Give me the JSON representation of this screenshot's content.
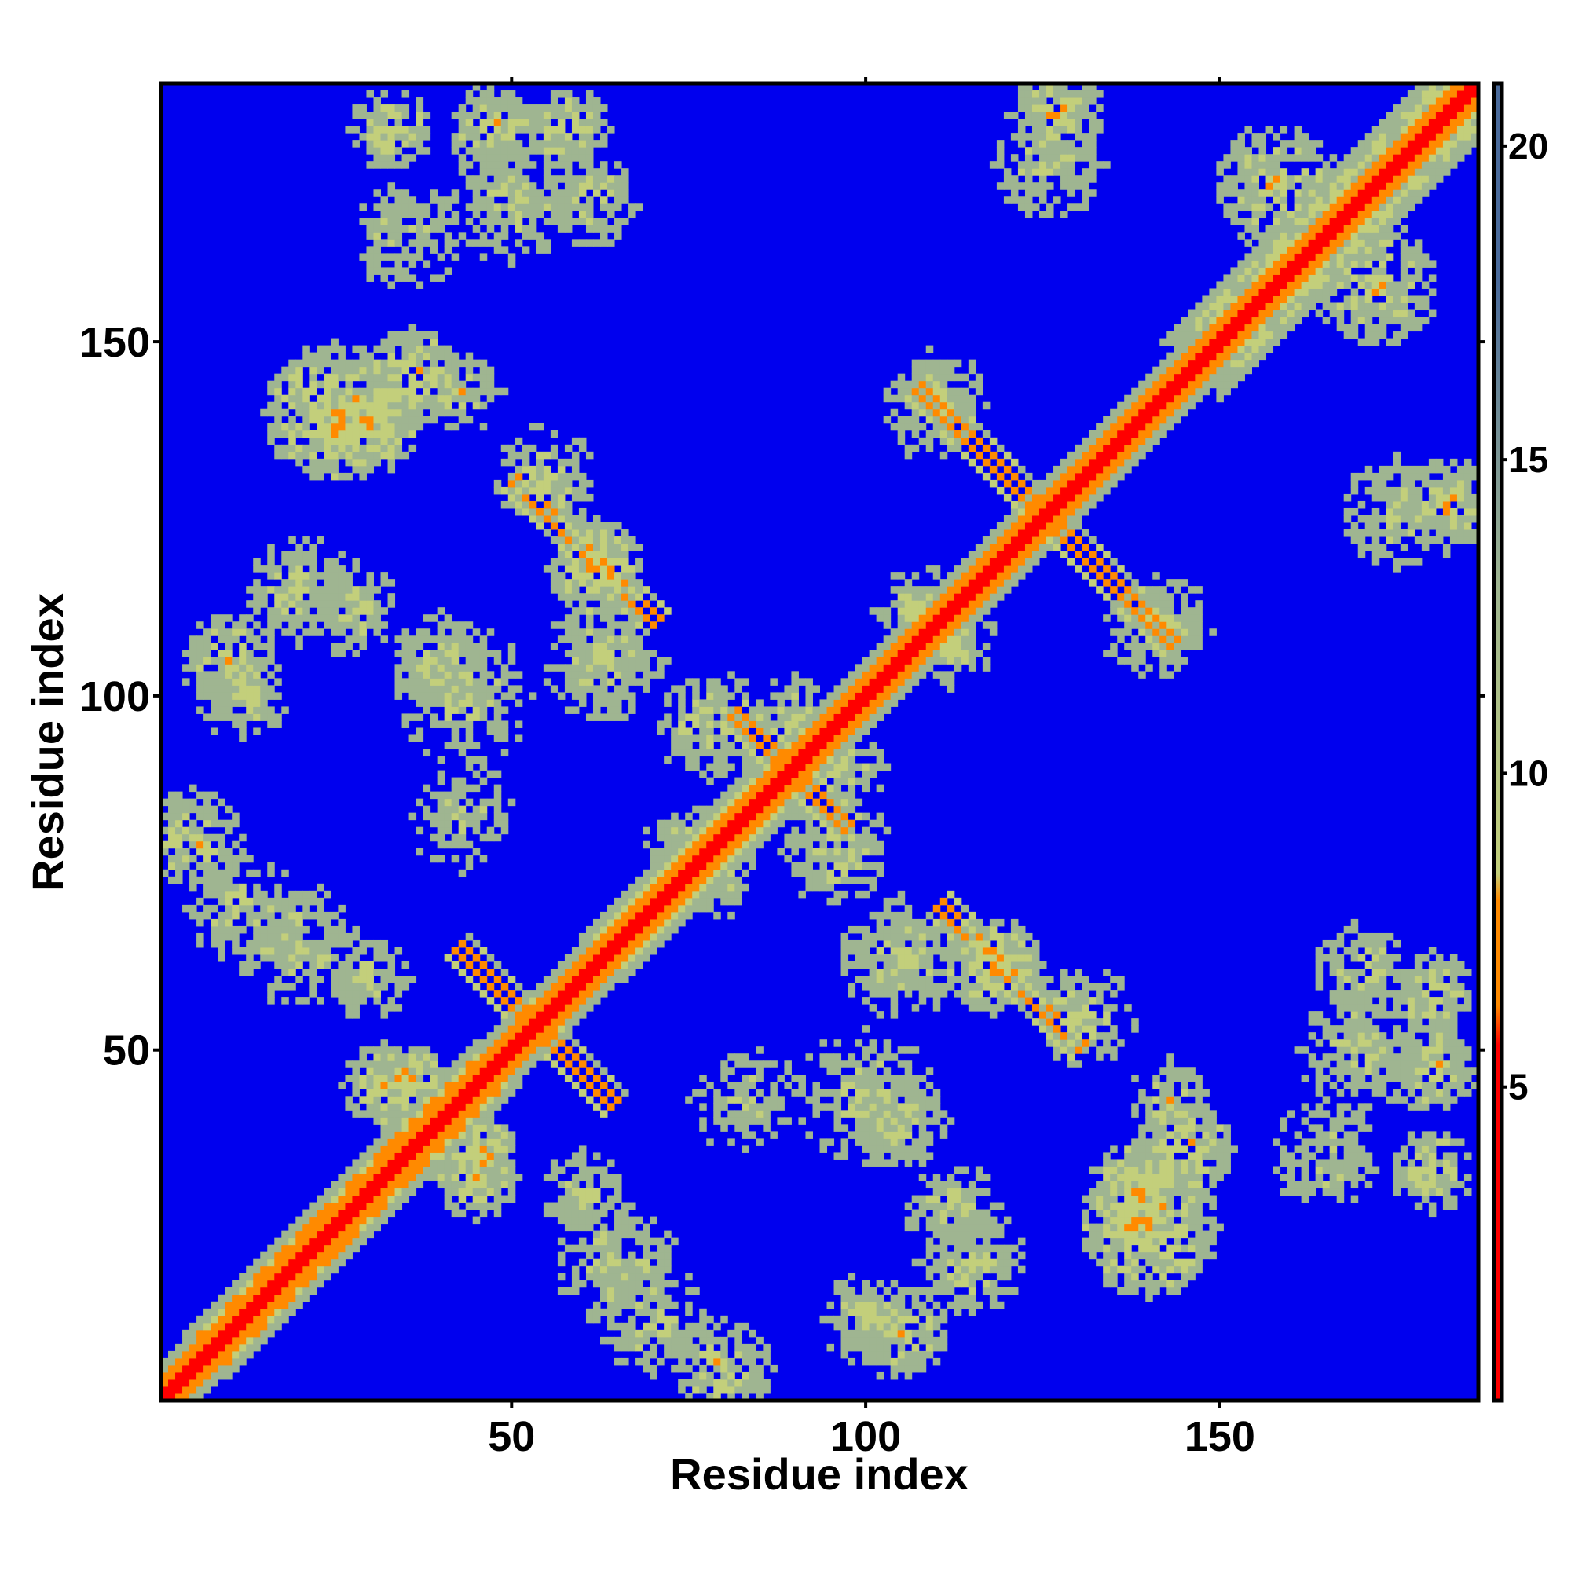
{
  "chart_data": {
    "type": "heatmap",
    "title": "",
    "xlabel": "Residue index",
    "ylabel": "Residue index",
    "xlim": [
      1,
      186
    ],
    "ylim": [
      1,
      186
    ],
    "x_ticks": [
      50,
      100,
      150
    ],
    "y_ticks": [
      50,
      100,
      150
    ],
    "colorbar": {
      "range": [
        0,
        21
      ],
      "ticks": [
        5,
        10,
        15,
        20
      ]
    },
    "colors": {
      "background": "#0000ee",
      "contact_close": "#ff0000",
      "contact_mid": "#ff8a00",
      "contact_far": "#9fb591",
      "contact_edge": "#c3cf7b",
      "colorbar_top": "#4a6a9a"
    },
    "symmetric": true,
    "diagonal_band": {
      "width": 3
    },
    "features": [
      {
        "kind": "antidiagonal",
        "center": [
          53,
          53
        ],
        "length": 22,
        "value": 6
      },
      {
        "kind": "antidiagonal",
        "center": [
          125,
          125
        ],
        "length": 36,
        "value": 6
      },
      {
        "kind": "antidiagonal",
        "center": [
          89,
          89
        ],
        "length": 16,
        "value": 6
      },
      {
        "kind": "antidiagonal",
        "center": [
          60,
          120
        ],
        "length": 20,
        "value": 7
      },
      {
        "kind": "band",
        "from": [
          10,
          10
        ],
        "to": [
          45,
          45
        ],
        "offset": 4,
        "value": 7
      },
      {
        "kind": "band",
        "from": [
          66,
          66
        ],
        "to": [
          84,
          84
        ],
        "offset": 4,
        "value": 8
      },
      {
        "kind": "band",
        "from": [
          150,
          150
        ],
        "to": [
          186,
          186
        ],
        "offset": 6,
        "value": 10
      },
      {
        "kind": "blob",
        "x": 33,
        "y": 180,
        "r": 6,
        "value": 9
      },
      {
        "kind": "blob",
        "x": 48,
        "y": 180,
        "r": 7,
        "value": 9
      },
      {
        "kind": "blob",
        "x": 58,
        "y": 180,
        "r": 6,
        "value": 9
      },
      {
        "kind": "blob",
        "x": 127,
        "y": 182,
        "r": 7,
        "value": 9
      },
      {
        "kind": "blob",
        "x": 158,
        "y": 172,
        "r": 9,
        "value": 9
      },
      {
        "kind": "blob",
        "x": 25,
        "y": 140,
        "r": 10,
        "value": 8
      },
      {
        "kind": "blob",
        "x": 43,
        "y": 143,
        "r": 6,
        "value": 10
      },
      {
        "kind": "blob",
        "x": 10,
        "y": 105,
        "r": 7,
        "value": 9
      },
      {
        "kind": "blob",
        "x": 20,
        "y": 115,
        "r": 8,
        "value": 10
      },
      {
        "kind": "blob",
        "x": 40,
        "y": 105,
        "r": 7,
        "value": 10
      },
      {
        "kind": "blob",
        "x": 63,
        "y": 105,
        "r": 9,
        "value": 10
      },
      {
        "kind": "blob",
        "x": 5,
        "y": 80,
        "r": 7,
        "value": 9
      },
      {
        "kind": "blob",
        "x": 20,
        "y": 65,
        "r": 9,
        "value": 10
      },
      {
        "kind": "blob",
        "x": 32,
        "y": 45,
        "r": 6,
        "value": 8
      },
      {
        "kind": "blob",
        "x": 45,
        "y": 36,
        "r": 6,
        "value": 8
      },
      {
        "kind": "blob",
        "x": 60,
        "y": 30,
        "r": 6,
        "value": 10
      },
      {
        "kind": "blob",
        "x": 70,
        "y": 12,
        "r": 8,
        "value": 10
      },
      {
        "kind": "blob",
        "x": 100,
        "y": 12,
        "r": 7,
        "value": 10
      },
      {
        "kind": "blob",
        "x": 112,
        "y": 28,
        "r": 7,
        "value": 10
      },
      {
        "kind": "blob",
        "x": 100,
        "y": 43,
        "r": 10,
        "value": 10
      },
      {
        "kind": "blob",
        "x": 83,
        "y": 43,
        "r": 8,
        "value": 11
      },
      {
        "kind": "blob",
        "x": 118,
        "y": 62,
        "r": 7,
        "value": 8
      },
      {
        "kind": "blob",
        "x": 131,
        "y": 55,
        "r": 8,
        "value": 10
      },
      {
        "kind": "blob",
        "x": 138,
        "y": 30,
        "r": 7,
        "value": 8
      },
      {
        "kind": "blob",
        "x": 145,
        "y": 36,
        "r": 7,
        "value": 8
      },
      {
        "kind": "blob",
        "x": 165,
        "y": 35,
        "r": 8,
        "value": 10
      },
      {
        "kind": "blob",
        "x": 170,
        "y": 50,
        "r": 9,
        "value": 10
      },
      {
        "kind": "blob",
        "x": 170,
        "y": 62,
        "r": 7,
        "value": 10
      },
      {
        "kind": "blob",
        "x": 175,
        "y": 126,
        "r": 8,
        "value": 10
      },
      {
        "kind": "blob",
        "x": 108,
        "y": 112,
        "r": 7,
        "value": 10
      },
      {
        "kind": "blob",
        "x": 96,
        "y": 78,
        "r": 8,
        "value": 10
      },
      {
        "kind": "blob",
        "x": 78,
        "y": 75,
        "r": 7,
        "value": 10
      },
      {
        "kind": "blob",
        "x": 90,
        "y": 97,
        "r": 6,
        "value": 10
      },
      {
        "kind": "blob",
        "x": 110,
        "y": 140,
        "r": 8,
        "value": 11
      },
      {
        "kind": "blob",
        "x": 142,
        "y": 110,
        "r": 8,
        "value": 11
      }
    ]
  }
}
